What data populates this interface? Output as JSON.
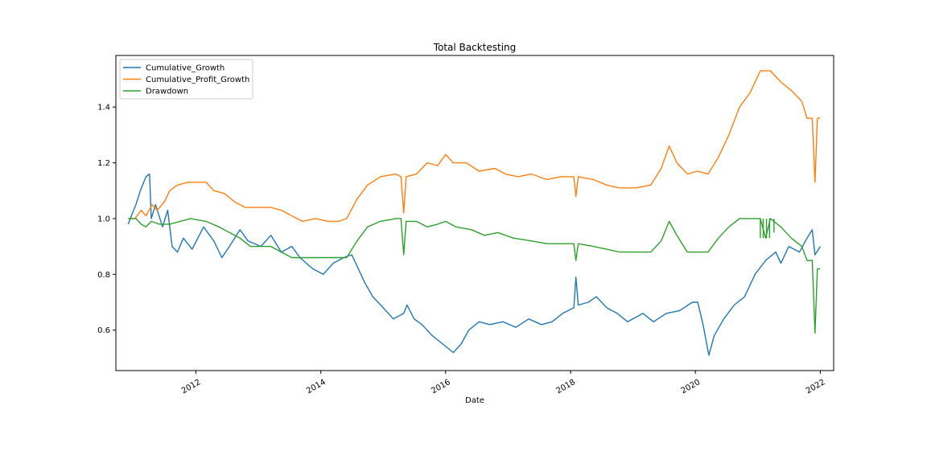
{
  "chart_data": {
    "type": "line",
    "title": "Total Backtesting",
    "xlabel": "Date",
    "ylabel": "",
    "x_range": [
      "2010-09-20",
      "2022-03-20"
    ],
    "ylim": [
      0.455,
      1.585
    ],
    "x_ticks": [
      "2012",
      "2014",
      "2016",
      "2018",
      "2020",
      "2022"
    ],
    "y_ticks": [
      "0.6",
      "0.8",
      "1.0",
      "1.2",
      "1.4"
    ],
    "grid": false,
    "legend_position": "upper-left",
    "series": [
      {
        "name": "Cumulative_Growth",
        "color": "#1f77b4",
        "points": [
          [
            "2010-12-01",
            0.98
          ],
          [
            "2010-12-20",
            1.01
          ],
          [
            "2011-01-15",
            1.05
          ],
          [
            "2011-02-10",
            1.1
          ],
          [
            "2011-03-15",
            1.15
          ],
          [
            "2011-04-05",
            1.16
          ],
          [
            "2011-04-15",
            1.0
          ],
          [
            "2011-05-10",
            1.05
          ],
          [
            "2011-06-20",
            0.97
          ],
          [
            "2011-07-20",
            1.03
          ],
          [
            "2011-08-15",
            0.9
          ],
          [
            "2011-09-15",
            0.88
          ],
          [
            "2011-10-20",
            0.93
          ],
          [
            "2011-12-10",
            0.89
          ],
          [
            "2012-02-15",
            0.97
          ],
          [
            "2012-04-15",
            0.92
          ],
          [
            "2012-06-01",
            0.86
          ],
          [
            "2012-07-15",
            0.9
          ],
          [
            "2012-09-15",
            0.96
          ],
          [
            "2012-11-01",
            0.92
          ],
          [
            "2013-01-15",
            0.9
          ],
          [
            "2013-03-15",
            0.94
          ],
          [
            "2013-05-15",
            0.88
          ],
          [
            "2013-07-15",
            0.9
          ],
          [
            "2013-09-01",
            0.86
          ],
          [
            "2013-11-15",
            0.82
          ],
          [
            "2014-01-15",
            0.8
          ],
          [
            "2014-03-15",
            0.84
          ],
          [
            "2014-05-15",
            0.86
          ],
          [
            "2014-07-01",
            0.87
          ],
          [
            "2014-08-01",
            0.83
          ],
          [
            "2014-09-15",
            0.77
          ],
          [
            "2014-11-01",
            0.72
          ],
          [
            "2015-01-01",
            0.68
          ],
          [
            "2015-03-01",
            0.64
          ],
          [
            "2015-05-01",
            0.66
          ],
          [
            "2015-05-20",
            0.69
          ],
          [
            "2015-07-01",
            0.64
          ],
          [
            "2015-08-15",
            0.62
          ],
          [
            "2015-10-15",
            0.58
          ],
          [
            "2015-12-15",
            0.55
          ],
          [
            "2016-02-15",
            0.52
          ],
          [
            "2016-04-01",
            0.55
          ],
          [
            "2016-05-15",
            0.6
          ],
          [
            "2016-07-15",
            0.63
          ],
          [
            "2016-09-15",
            0.62
          ],
          [
            "2016-12-01",
            0.63
          ],
          [
            "2017-02-15",
            0.61
          ],
          [
            "2017-05-01",
            0.64
          ],
          [
            "2017-07-15",
            0.62
          ],
          [
            "2017-09-15",
            0.63
          ],
          [
            "2017-11-15",
            0.66
          ],
          [
            "2018-01-20",
            0.68
          ],
          [
            "2018-02-01",
            0.79
          ],
          [
            "2018-02-15",
            0.69
          ],
          [
            "2018-04-15",
            0.7
          ],
          [
            "2018-06-01",
            0.72
          ],
          [
            "2018-08-01",
            0.68
          ],
          [
            "2018-10-01",
            0.66
          ],
          [
            "2018-12-01",
            0.63
          ],
          [
            "2019-03-01",
            0.66
          ],
          [
            "2019-05-01",
            0.63
          ],
          [
            "2019-07-15",
            0.66
          ],
          [
            "2019-10-01",
            0.67
          ],
          [
            "2019-12-15",
            0.7
          ],
          [
            "2020-01-15",
            0.7
          ],
          [
            "2020-02-15",
            0.62
          ],
          [
            "2020-03-20",
            0.51
          ],
          [
            "2020-04-20",
            0.58
          ],
          [
            "2020-06-15",
            0.64
          ],
          [
            "2020-08-15",
            0.69
          ],
          [
            "2020-10-15",
            0.72
          ],
          [
            "2020-12-15",
            0.8
          ],
          [
            "2021-02-15",
            0.85
          ],
          [
            "2021-04-15",
            0.88
          ],
          [
            "2021-05-15",
            0.84
          ],
          [
            "2021-07-01",
            0.9
          ],
          [
            "2021-09-01",
            0.88
          ],
          [
            "2021-10-15",
            0.93
          ],
          [
            "2021-11-15",
            0.96
          ],
          [
            "2021-12-01",
            0.87
          ],
          [
            "2022-01-01",
            0.9
          ]
        ]
      },
      {
        "name": "Cumulative_Profit_Growth",
        "color": "#ff7f0e",
        "points": [
          [
            "2010-12-01",
            1.0
          ],
          [
            "2011-01-10",
            1.0
          ],
          [
            "2011-02-15",
            1.03
          ],
          [
            "2011-03-15",
            1.01
          ],
          [
            "2011-04-20",
            1.05
          ],
          [
            "2011-05-20",
            1.03
          ],
          [
            "2011-07-01",
            1.06
          ],
          [
            "2011-08-01",
            1.1
          ],
          [
            "2011-09-15",
            1.12
          ],
          [
            "2011-11-15",
            1.13
          ],
          [
            "2012-03-01",
            1.13
          ],
          [
            "2012-04-15",
            1.1
          ],
          [
            "2012-06-15",
            1.09
          ],
          [
            "2012-08-15",
            1.06
          ],
          [
            "2012-10-15",
            1.04
          ],
          [
            "2013-01-01",
            1.04
          ],
          [
            "2013-03-15",
            1.04
          ],
          [
            "2013-05-15",
            1.03
          ],
          [
            "2013-07-15",
            1.01
          ],
          [
            "2013-09-15",
            0.99
          ],
          [
            "2013-12-01",
            1.0
          ],
          [
            "2014-02-15",
            0.99
          ],
          [
            "2014-04-15",
            0.99
          ],
          [
            "2014-06-01",
            1.0
          ],
          [
            "2014-08-01",
            1.07
          ],
          [
            "2014-10-01",
            1.12
          ],
          [
            "2014-12-15",
            1.15
          ],
          [
            "2015-03-15",
            1.16
          ],
          [
            "2015-04-15",
            1.15
          ],
          [
            "2015-05-01",
            1.02
          ],
          [
            "2015-05-15",
            1.15
          ],
          [
            "2015-07-15",
            1.16
          ],
          [
            "2015-09-15",
            1.2
          ],
          [
            "2015-11-15",
            1.19
          ],
          [
            "2016-01-01",
            1.23
          ],
          [
            "2016-02-15",
            1.2
          ],
          [
            "2016-05-01",
            1.2
          ],
          [
            "2016-07-15",
            1.17
          ],
          [
            "2016-10-15",
            1.18
          ],
          [
            "2016-12-15",
            1.16
          ],
          [
            "2017-03-01",
            1.15
          ],
          [
            "2017-05-15",
            1.16
          ],
          [
            "2017-08-15",
            1.14
          ],
          [
            "2017-11-01",
            1.15
          ],
          [
            "2018-01-20",
            1.15
          ],
          [
            "2018-02-01",
            1.08
          ],
          [
            "2018-02-15",
            1.15
          ],
          [
            "2018-05-15",
            1.14
          ],
          [
            "2018-08-01",
            1.12
          ],
          [
            "2018-10-15",
            1.11
          ],
          [
            "2019-01-15",
            1.11
          ],
          [
            "2019-04-15",
            1.12
          ],
          [
            "2019-06-15",
            1.18
          ],
          [
            "2019-08-01",
            1.26
          ],
          [
            "2019-09-15",
            1.2
          ],
          [
            "2019-11-15",
            1.16
          ],
          [
            "2020-01-15",
            1.17
          ],
          [
            "2020-03-15",
            1.16
          ],
          [
            "2020-05-15",
            1.22
          ],
          [
            "2020-07-15",
            1.3
          ],
          [
            "2020-09-15",
            1.4
          ],
          [
            "2020-11-15",
            1.45
          ],
          [
            "2021-01-15",
            1.53
          ],
          [
            "2021-03-15",
            1.53
          ],
          [
            "2021-05-15",
            1.49
          ],
          [
            "2021-07-15",
            1.46
          ],
          [
            "2021-09-15",
            1.42
          ],
          [
            "2021-10-15",
            1.36
          ],
          [
            "2021-11-15",
            1.36
          ],
          [
            "2021-12-01",
            1.13
          ],
          [
            "2021-12-15",
            1.36
          ],
          [
            "2022-01-01",
            1.36
          ]
        ]
      },
      {
        "name": "Drawdown",
        "color": "#2ca02c",
        "points": [
          [
            "2010-12-01",
            1.0
          ],
          [
            "2011-01-15",
            1.0
          ],
          [
            "2011-02-15",
            0.98
          ],
          [
            "2011-03-15",
            0.97
          ],
          [
            "2011-04-15",
            0.99
          ],
          [
            "2011-06-01",
            0.98
          ],
          [
            "2011-08-01",
            0.98
          ],
          [
            "2011-10-01",
            0.99
          ],
          [
            "2011-12-01",
            1.0
          ],
          [
            "2012-03-01",
            0.99
          ],
          [
            "2012-05-15",
            0.97
          ],
          [
            "2012-07-15",
            0.95
          ],
          [
            "2012-09-15",
            0.93
          ],
          [
            "2012-11-15",
            0.9
          ],
          [
            "2013-01-15",
            0.9
          ],
          [
            "2013-03-15",
            0.9
          ],
          [
            "2013-05-15",
            0.88
          ],
          [
            "2013-07-15",
            0.86
          ],
          [
            "2013-09-15",
            0.86
          ],
          [
            "2013-12-15",
            0.86
          ],
          [
            "2014-03-15",
            0.86
          ],
          [
            "2014-06-01",
            0.86
          ],
          [
            "2014-08-01",
            0.92
          ],
          [
            "2014-10-01",
            0.97
          ],
          [
            "2014-12-15",
            0.99
          ],
          [
            "2015-03-15",
            1.0
          ],
          [
            "2015-04-15",
            1.0
          ],
          [
            "2015-05-01",
            0.87
          ],
          [
            "2015-05-15",
            0.99
          ],
          [
            "2015-07-15",
            0.99
          ],
          [
            "2015-09-15",
            0.97
          ],
          [
            "2015-11-15",
            0.98
          ],
          [
            "2016-01-01",
            0.99
          ],
          [
            "2016-03-01",
            0.97
          ],
          [
            "2016-06-01",
            0.96
          ],
          [
            "2016-08-15",
            0.94
          ],
          [
            "2016-11-01",
            0.95
          ],
          [
            "2017-02-01",
            0.93
          ],
          [
            "2017-05-15",
            0.92
          ],
          [
            "2017-08-15",
            0.91
          ],
          [
            "2017-11-15",
            0.91
          ],
          [
            "2018-01-20",
            0.91
          ],
          [
            "2018-02-01",
            0.85
          ],
          [
            "2018-02-15",
            0.91
          ],
          [
            "2018-05-15",
            0.9
          ],
          [
            "2018-08-01",
            0.89
          ],
          [
            "2018-10-15",
            0.88
          ],
          [
            "2019-01-15",
            0.88
          ],
          [
            "2019-04-15",
            0.88
          ],
          [
            "2019-06-15",
            0.92
          ],
          [
            "2019-08-01",
            0.99
          ],
          [
            "2019-09-15",
            0.94
          ],
          [
            "2019-11-15",
            0.88
          ],
          [
            "2020-01-15",
            0.88
          ],
          [
            "2020-03-15",
            0.88
          ],
          [
            "2020-05-15",
            0.93
          ],
          [
            "2020-07-15",
            0.97
          ],
          [
            "2020-09-15",
            1.0
          ],
          [
            "2020-11-15",
            1.0
          ],
          [
            "2021-01-15",
            1.0
          ],
          [
            "2021-02-15",
            0.93
          ],
          [
            "2021-03-15",
            1.0
          ],
          [
            "2021-05-15",
            0.97
          ],
          [
            "2021-07-15",
            0.93
          ],
          [
            "2021-09-15",
            0.9
          ],
          [
            "2021-10-15",
            0.85
          ],
          [
            "2021-11-15",
            0.85
          ],
          [
            "2021-12-01",
            0.59
          ],
          [
            "2021-12-15",
            0.82
          ],
          [
            "2022-01-01",
            0.82
          ]
        ],
        "spikes": [
          [
            "2021-01-15",
            1.0,
            0.93
          ],
          [
            "2021-02-01",
            1.0,
            0.93
          ],
          [
            "2021-02-20",
            1.0,
            0.93
          ],
          [
            "2021-03-10",
            1.0,
            0.93
          ],
          [
            "2021-04-05",
            1.0,
            0.95
          ]
        ]
      }
    ]
  }
}
